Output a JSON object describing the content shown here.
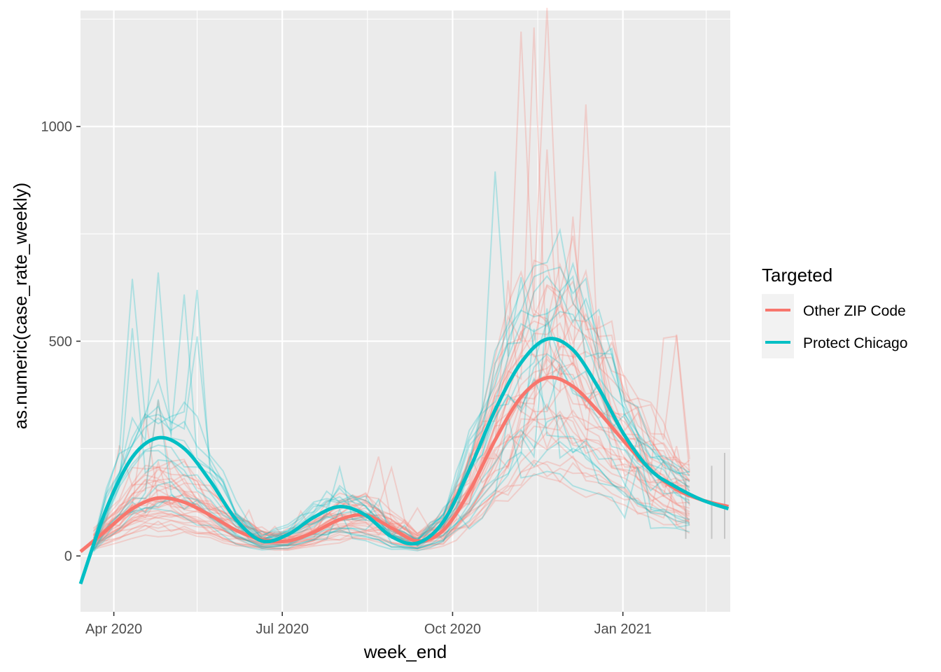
{
  "chart_data": {
    "type": "line",
    "title": "",
    "xlabel": "week_end",
    "ylabel": "as.numeric(case_rate_weekly)",
    "x_type": "date",
    "xlim": [
      "2020-03-14",
      "2021-02-28"
    ],
    "ylim": [
      -130,
      1270
    ],
    "x_ticks": [
      {
        "date": "2020-04-01",
        "label": "Apr 2020"
      },
      {
        "date": "2020-07-01",
        "label": "Jul 2020"
      },
      {
        "date": "2020-10-01",
        "label": "Oct 2020"
      },
      {
        "date": "2021-01-01",
        "label": "Jan 2021"
      }
    ],
    "x_minor_ticks": [
      "2020-05-16",
      "2020-08-16",
      "2020-11-16",
      "2021-02-15"
    ],
    "y_ticks": [
      0,
      500,
      1000
    ],
    "y_minor_ticks": [
      250,
      750,
      1250
    ],
    "grid": true,
    "legend": {
      "title": "Targeted",
      "position": "right",
      "entries": [
        {
          "label": "Other ZIP Code",
          "color": "#F8766D"
        },
        {
          "label": "Protect Chicago",
          "color": "#00BFC4"
        }
      ]
    },
    "colors": {
      "other": "#F8766D",
      "protect": "#00BFC4",
      "panel": "#EBEBEB",
      "grid": "#FFFFFF",
      "overlap": "#7F7F7F"
    },
    "smooth_series": [
      {
        "name": "Other ZIP Code",
        "color": "#F8766D",
        "x": [
          "2020-03-14",
          "2020-03-28",
          "2020-04-11",
          "2020-04-25",
          "2020-05-09",
          "2020-05-23",
          "2020-06-06",
          "2020-06-20",
          "2020-07-04",
          "2020-07-18",
          "2020-08-01",
          "2020-08-15",
          "2020-08-29",
          "2020-09-12",
          "2020-09-26",
          "2020-10-10",
          "2020-10-24",
          "2020-11-07",
          "2020-11-21",
          "2020-12-05",
          "2020-12-19",
          "2021-01-02",
          "2021-01-16",
          "2021-01-30",
          "2021-02-13",
          "2021-02-27"
        ],
        "values": [
          10,
          60,
          110,
          135,
          125,
          95,
          60,
          38,
          35,
          55,
          85,
          95,
          65,
          35,
          60,
          150,
          270,
          370,
          415,
          395,
          335,
          265,
          200,
          155,
          130,
          115
        ]
      },
      {
        "name": "Protect Chicago",
        "color": "#00BFC4",
        "x": [
          "2020-03-14",
          "2020-03-28",
          "2020-04-11",
          "2020-04-25",
          "2020-05-09",
          "2020-05-23",
          "2020-06-06",
          "2020-06-20",
          "2020-07-04",
          "2020-07-18",
          "2020-08-01",
          "2020-08-15",
          "2020-08-29",
          "2020-09-12",
          "2020-09-26",
          "2020-10-10",
          "2020-10-24",
          "2020-11-07",
          "2020-11-21",
          "2020-12-05",
          "2020-12-19",
          "2021-01-02",
          "2021-01-16",
          "2021-01-30",
          "2021-02-13",
          "2021-02-27"
        ],
        "values": [
          -65,
          110,
          230,
          275,
          250,
          175,
          85,
          35,
          50,
          90,
          115,
          95,
          45,
          30,
          80,
          200,
          340,
          450,
          505,
          480,
          390,
          280,
          200,
          160,
          130,
          110
        ]
      }
    ]
  }
}
